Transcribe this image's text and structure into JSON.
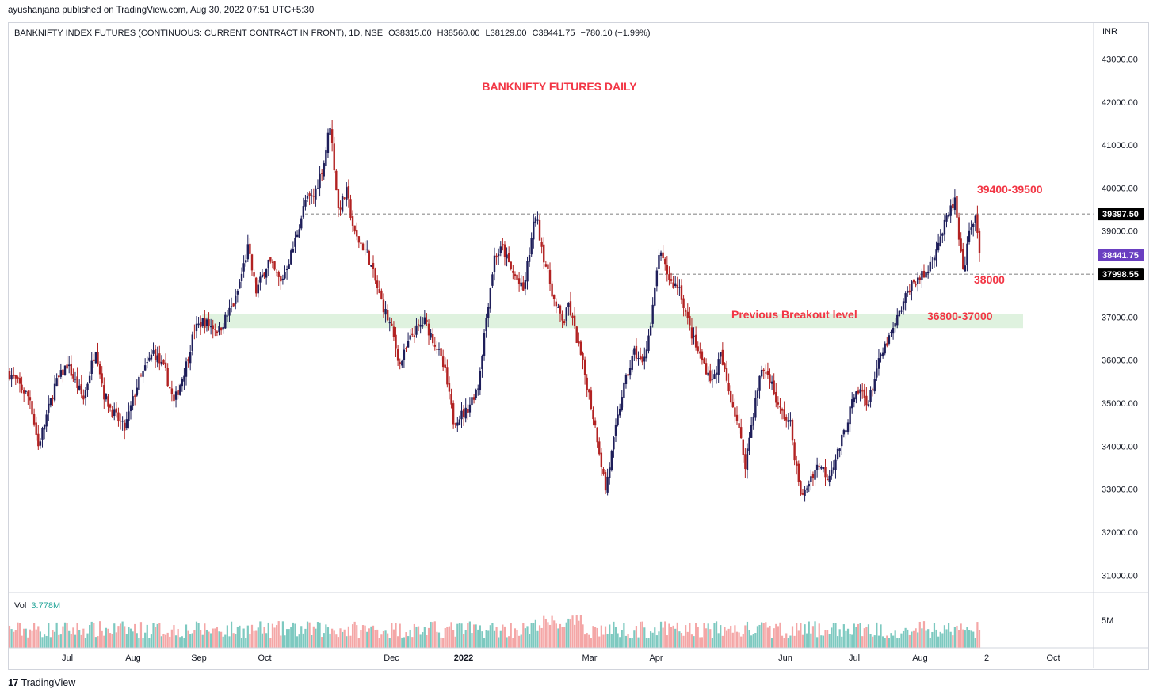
{
  "publisher_line": "ayushanjana published on TradingView.com, Aug 30, 2022 07:51 UTC+5:30",
  "legend": {
    "symbol": "BANKNIFTY INDEX FUTURES (CONTINUOUS: CURRENT CONTRACT IN FRONT), 1D, NSE",
    "open": "O38315.00",
    "high": "H38560.00",
    "low": "L38129.00",
    "close": "C38441.75",
    "change": "−780.10 (−1.99%)"
  },
  "currency": "INR",
  "volume": {
    "label": "Vol",
    "value": "3.778M",
    "axis_label": "5M"
  },
  "footer": {
    "logo": "17",
    "brand": "TradingView"
  },
  "colors": {
    "up": "#1e1e5a",
    "down": "#b22222",
    "vol_up": "#7dc9c0",
    "vol_down": "#f4a6a6",
    "annotation": "#f23645",
    "zone": "#dff2df",
    "last_price_badge": "#6a3fc1",
    "level_badge": "#000000"
  },
  "chart_data": {
    "type": "candlestick",
    "title": "BANKNIFTY FUTURES DAILY",
    "ylim": [
      30600,
      43450
    ],
    "y_ticks": [
      "43000.00",
      "42000.00",
      "41000.00",
      "40000.00",
      "39000.00",
      "38000.00",
      "37000.00",
      "36000.00",
      "35000.00",
      "34000.00",
      "33000.00",
      "32000.00",
      "31000.00"
    ],
    "x_ticks": [
      "Jul",
      "Aug",
      "Sep",
      "Oct",
      "Dec",
      "2022",
      "Mar",
      "Apr",
      "Jun",
      "Jul",
      "Aug",
      "2",
      "Oct"
    ],
    "price_badges": {
      "level_high": "39397.50",
      "last": "38441.75",
      "level_low": "37998.55"
    },
    "annotations": {
      "resistance": "39400-39500",
      "support": "38000",
      "zone_label": "Previous Breakout level",
      "zone_range": "36800-37000"
    },
    "zone": [
      36800,
      37000
    ],
    "levels": [
      39397.5,
      37998.55
    ],
    "anchors": [
      [
        0,
        35700
      ],
      [
        10,
        35100
      ],
      [
        14,
        34000
      ],
      [
        22,
        35400
      ],
      [
        28,
        35900
      ],
      [
        36,
        35100
      ],
      [
        42,
        36300
      ],
      [
        46,
        35200
      ],
      [
        50,
        34800
      ],
      [
        56,
        34400
      ],
      [
        62,
        35400
      ],
      [
        70,
        36200
      ],
      [
        76,
        35700
      ],
      [
        80,
        35000
      ],
      [
        86,
        35900
      ],
      [
        90,
        36700
      ],
      [
        94,
        36900
      ],
      [
        102,
        36700
      ],
      [
        110,
        37400
      ],
      [
        116,
        38600
      ],
      [
        120,
        37600
      ],
      [
        126,
        38300
      ],
      [
        132,
        37800
      ],
      [
        138,
        38600
      ],
      [
        144,
        39700
      ],
      [
        148,
        39800
      ],
      [
        153,
        40600
      ],
      [
        156,
        41500
      ],
      [
        160,
        39500
      ],
      [
        164,
        39900
      ],
      [
        168,
        38900
      ],
      [
        174,
        38500
      ],
      [
        180,
        37500
      ],
      [
        186,
        36700
      ],
      [
        190,
        35900
      ],
      [
        196,
        36600
      ],
      [
        202,
        36900
      ],
      [
        208,
        36300
      ],
      [
        212,
        35700
      ],
      [
        216,
        34600
      ],
      [
        222,
        34800
      ],
      [
        228,
        35400
      ],
      [
        232,
        37000
      ],
      [
        236,
        38400
      ],
      [
        240,
        38600
      ],
      [
        244,
        38100
      ],
      [
        250,
        37600
      ],
      [
        254,
        38800
      ],
      [
        256,
        39400
      ],
      [
        260,
        38400
      ],
      [
        266,
        37200
      ],
      [
        270,
        36900
      ],
      [
        272,
        37300
      ],
      [
        278,
        36100
      ],
      [
        282,
        35200
      ],
      [
        286,
        34200
      ],
      [
        290,
        33000
      ],
      [
        294,
        34100
      ],
      [
        298,
        35200
      ],
      [
        304,
        36200
      ],
      [
        308,
        35900
      ],
      [
        312,
        36800
      ],
      [
        314,
        37600
      ],
      [
        316,
        38500
      ],
      [
        322,
        37800
      ],
      [
        326,
        37700
      ],
      [
        330,
        36900
      ],
      [
        334,
        36300
      ],
      [
        338,
        35900
      ],
      [
        342,
        35500
      ],
      [
        346,
        36100
      ],
      [
        350,
        35300
      ],
      [
        354,
        34600
      ],
      [
        358,
        33600
      ],
      [
        362,
        34800
      ],
      [
        366,
        35800
      ],
      [
        370,
        35600
      ],
      [
        374,
        34900
      ],
      [
        380,
        34500
      ],
      [
        384,
        33100
      ],
      [
        386,
        32800
      ],
      [
        390,
        33300
      ],
      [
        394,
        33600
      ],
      [
        398,
        33300
      ],
      [
        402,
        33700
      ],
      [
        406,
        34300
      ],
      [
        410,
        35000
      ],
      [
        414,
        35300
      ],
      [
        418,
        35000
      ],
      [
        422,
        35800
      ],
      [
        426,
        36300
      ],
      [
        430,
        36700
      ],
      [
        434,
        37200
      ],
      [
        438,
        37700
      ],
      [
        442,
        37900
      ],
      [
        446,
        38000
      ],
      [
        450,
        38500
      ],
      [
        454,
        39000
      ],
      [
        458,
        39500
      ],
      [
        460,
        39700
      ],
      [
        462,
        38800
      ],
      [
        464,
        38000
      ],
      [
        468,
        39200
      ],
      [
        470,
        39300
      ],
      [
        472,
        38440
      ]
    ]
  }
}
